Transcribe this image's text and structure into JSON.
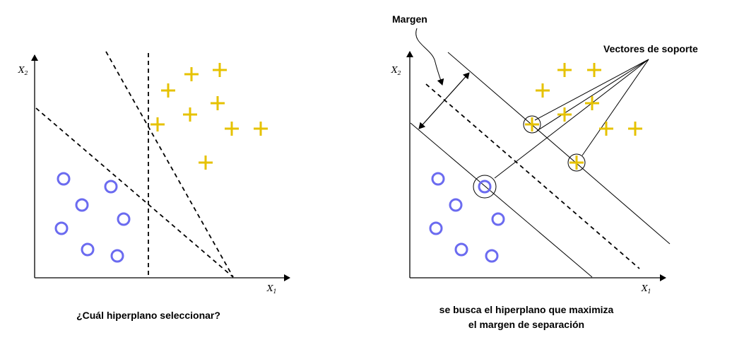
{
  "left_panel": {
    "x_axis_label": "X",
    "x_axis_subscript": "1",
    "y_axis_label": "X",
    "y_axis_subscript": "2",
    "caption": "¿Cuál hiperplano seleccionar?"
  },
  "right_panel": {
    "x_axis_label": "X",
    "x_axis_subscript": "1",
    "y_axis_label": "X",
    "y_axis_subscript": "2",
    "margin_label": "Margen",
    "support_vectors_label": "Vectores de soporte",
    "caption_line1": "se busca el hiperplano que maximiza",
    "caption_line2": "el margen de separación"
  },
  "colors": {
    "plus_class": "#e6c200",
    "circle_class": "#6b6bf0",
    "lines": "#000000"
  },
  "icons": {
    "plus_marker": "plus-icon",
    "circle_marker": "circle-icon"
  }
}
